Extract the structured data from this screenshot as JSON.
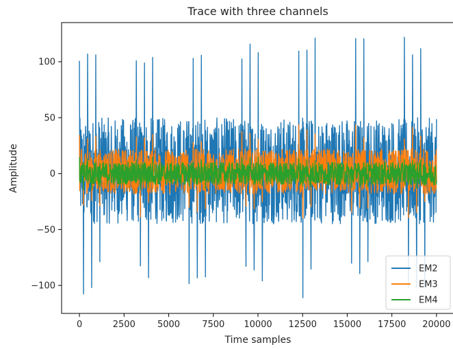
{
  "chart_data": {
    "type": "line",
    "title": "Trace with three channels",
    "xlabel": "Time samples",
    "ylabel": "Amplitude",
    "xlim": [
      -1000,
      21000
    ],
    "ylim": [
      -125,
      135
    ],
    "xticks": [
      0,
      2500,
      5000,
      7500,
      10000,
      12500,
      15000,
      17500,
      20000
    ],
    "xtick_labels": [
      "0",
      "2500",
      "5000",
      "7500",
      "10000",
      "12500",
      "15000",
      "17500",
      "20000"
    ],
    "yticks": [
      -100,
      -50,
      0,
      50,
      100
    ],
    "ytick_labels": [
      "−100",
      "−50",
      "0",
      "50",
      "100"
    ],
    "grid": false,
    "legend_position": "bottom-right",
    "series": [
      {
        "name": "EM2",
        "color": "#1f77b4",
        "description": "periodic spiky signal, ~43 spike pairs, baseline band about -45 to 50",
        "x_range": [
          0,
          20000
        ],
        "spike_period_samples": 455,
        "band": [
          -45,
          50
        ],
        "spike_max_approx": 122,
        "spike_min_approx": -112
      },
      {
        "name": "EM3",
        "color": "#ff7f0e",
        "x_range": [
          0,
          20000
        ],
        "band": [
          -18,
          22
        ],
        "spike_max_approx": 44,
        "spike_min_approx": -40
      },
      {
        "name": "EM4",
        "color": "#2ca02c",
        "x_range": [
          0,
          20000
        ],
        "band": [
          -10,
          10
        ],
        "spike_max_approx": 15,
        "spike_min_approx": -15
      }
    ]
  }
}
